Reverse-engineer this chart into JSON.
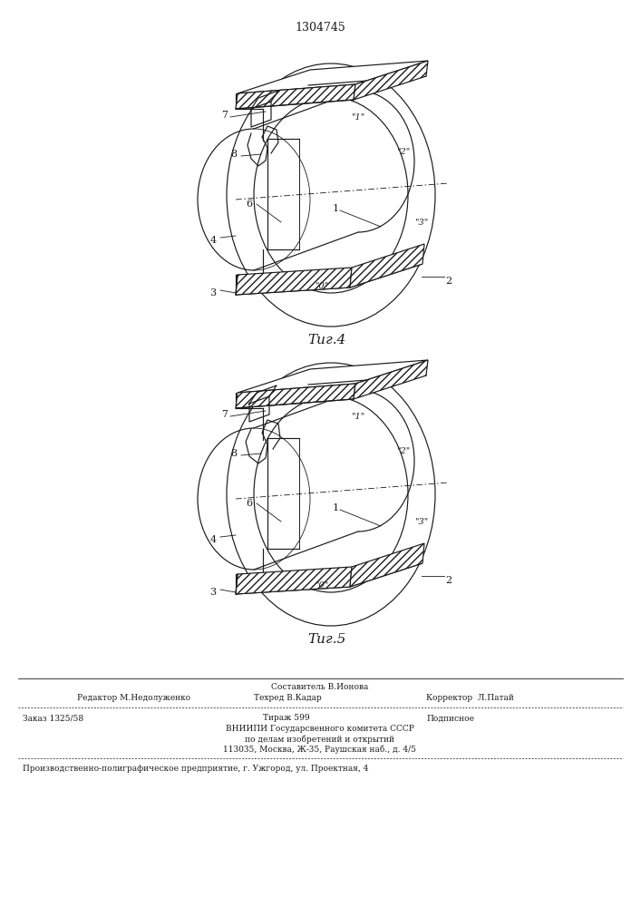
{
  "patent_number": "1304745",
  "fig4_label": "Τиг.4",
  "fig5_label": "Τиг.5",
  "bg_color": "#ffffff",
  "line_color": "#1a1a1a",
  "footer_line1_left": "Редактор М.Недолуженко",
  "footer_line1_center_top": "Составитель В.Ионова",
  "footer_line1_center": "Техред В.Кадар",
  "footer_line1_right": "Корректор  Л.Патай",
  "footer_line2_left": "Заказ 1325/58",
  "footer_line2_center": "Тираж 599",
  "footer_line2_right": "Подписное",
  "footer_line3": "ВНИИПИ Государсвенного комитета СССР",
  "footer_line4": "по делам изобретений и открытий",
  "footer_line5": "113035, Москва, Ж-35, Раушская наб., д. 4/5",
  "footer_line6": "Производственно-полиграфическое предприятие, г. Ужгород, ул. Проектная, 4"
}
